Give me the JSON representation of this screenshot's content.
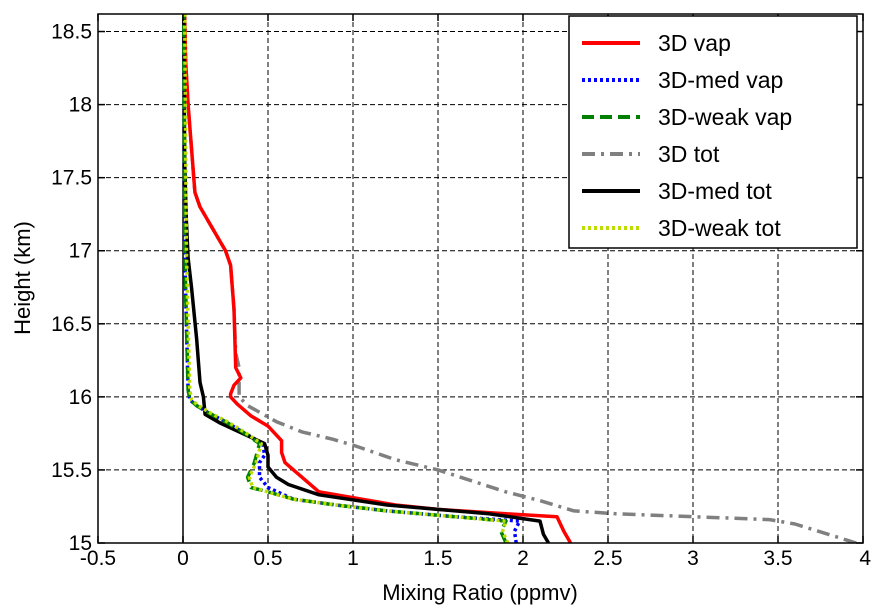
{
  "chart_data": {
    "type": "line",
    "title": "",
    "xlabel": "Mixing Ratio (ppmv)",
    "ylabel": "Height (km)",
    "xlim": [
      -0.5,
      4
    ],
    "ylim": [
      15,
      18.62
    ],
    "grid": true,
    "legend_position": "top-right",
    "x_ticks": [
      "-0.5",
      "0",
      "0.5",
      "1",
      "1.5",
      "2",
      "2.5",
      "3",
      "3.5",
      "4"
    ],
    "y_ticks": [
      "15",
      "15.5",
      "16",
      "16.5",
      "17",
      "17.5",
      "18",
      "18.5"
    ],
    "reference_line_x": 0,
    "series": [
      {
        "name": "3D tot",
        "color": "#808080",
        "dash": "dashdot",
        "points": [
          [
            3.96,
            15.0
          ],
          [
            3.85,
            15.04
          ],
          [
            3.6,
            15.13
          ],
          [
            3.45,
            15.16
          ],
          [
            3.0,
            15.18
          ],
          [
            2.55,
            15.2
          ],
          [
            2.3,
            15.22
          ],
          [
            2.1,
            15.29
          ],
          [
            1.9,
            15.35
          ],
          [
            1.5,
            15.5
          ],
          [
            1.25,
            15.57
          ],
          [
            1.0,
            15.67
          ],
          [
            0.88,
            15.71
          ],
          [
            0.7,
            15.76
          ],
          [
            0.55,
            15.83
          ],
          [
            0.38,
            15.94
          ],
          [
            0.33,
            16.0
          ],
          [
            0.33,
            16.2
          ],
          [
            0.31,
            16.3
          ],
          [
            0.3,
            16.6
          ],
          [
            0.28,
            16.9
          ],
          [
            0.25,
            17.0
          ],
          [
            0.2,
            17.1
          ],
          [
            0.15,
            17.2
          ],
          [
            0.1,
            17.3
          ],
          [
            0.07,
            17.4
          ],
          [
            0.05,
            17.7
          ],
          [
            0.03,
            18.0
          ],
          [
            0.015,
            18.3
          ],
          [
            0.01,
            18.62
          ]
        ]
      },
      {
        "name": "3D vap",
        "color": "#ff0000",
        "dash": "solid",
        "points": [
          [
            2.28,
            15.0
          ],
          [
            2.24,
            15.08
          ],
          [
            2.2,
            15.18
          ],
          [
            1.9,
            15.2
          ],
          [
            1.5,
            15.23
          ],
          [
            1.25,
            15.26
          ],
          [
            0.8,
            15.35
          ],
          [
            0.72,
            15.43
          ],
          [
            0.65,
            15.5
          ],
          [
            0.6,
            15.55
          ],
          [
            0.58,
            15.62
          ],
          [
            0.58,
            15.7
          ],
          [
            0.5,
            15.8
          ],
          [
            0.4,
            15.87
          ],
          [
            0.32,
            15.95
          ],
          [
            0.28,
            16.0
          ],
          [
            0.28,
            16.02
          ],
          [
            0.3,
            16.08
          ],
          [
            0.34,
            16.13
          ],
          [
            0.31,
            16.2
          ],
          [
            0.3,
            16.6
          ],
          [
            0.28,
            16.9
          ],
          [
            0.25,
            17.0
          ],
          [
            0.2,
            17.1
          ],
          [
            0.15,
            17.2
          ],
          [
            0.1,
            17.3
          ],
          [
            0.07,
            17.4
          ],
          [
            0.05,
            17.7
          ],
          [
            0.03,
            18.0
          ],
          [
            0.015,
            18.3
          ],
          [
            0.01,
            18.62
          ]
        ]
      },
      {
        "name": "3D-med vap",
        "color": "#0000ff",
        "dash": "dotted",
        "points": [
          [
            1.96,
            15.0
          ],
          [
            1.95,
            15.08
          ],
          [
            1.98,
            15.15
          ],
          [
            1.6,
            15.18
          ],
          [
            1.2,
            15.22
          ],
          [
            0.9,
            15.26
          ],
          [
            0.65,
            15.3
          ],
          [
            0.5,
            15.38
          ],
          [
            0.45,
            15.45
          ],
          [
            0.45,
            15.55
          ],
          [
            0.48,
            15.6
          ],
          [
            0.47,
            15.68
          ],
          [
            0.35,
            15.76
          ],
          [
            0.25,
            15.83
          ],
          [
            0.15,
            15.89
          ],
          [
            0.08,
            15.94
          ],
          [
            0.04,
            15.98
          ],
          [
            0.03,
            16.05
          ],
          [
            0.02,
            16.5
          ],
          [
            0.01,
            17.0
          ],
          [
            0.005,
            18.62
          ]
        ]
      },
      {
        "name": "3D-med tot",
        "color": "#000000",
        "dash": "solid",
        "points": [
          [
            2.15,
            15.0
          ],
          [
            2.12,
            15.06
          ],
          [
            2.1,
            15.15
          ],
          [
            1.8,
            15.2
          ],
          [
            1.5,
            15.23
          ],
          [
            1.2,
            15.26
          ],
          [
            0.8,
            15.33
          ],
          [
            0.62,
            15.4
          ],
          [
            0.55,
            15.45
          ],
          [
            0.5,
            15.52
          ],
          [
            0.5,
            15.6
          ],
          [
            0.48,
            15.68
          ],
          [
            0.35,
            15.75
          ],
          [
            0.22,
            15.82
          ],
          [
            0.13,
            15.88
          ],
          [
            0.12,
            16.0
          ],
          [
            0.1,
            16.1
          ],
          [
            0.08,
            16.4
          ],
          [
            0.05,
            16.75
          ],
          [
            0.03,
            16.95
          ],
          [
            0.02,
            17.2
          ],
          [
            0.01,
            17.6
          ],
          [
            0.005,
            18.62
          ]
        ]
      },
      {
        "name": "3D-weak vap",
        "color": "#008000",
        "dash": "dashed",
        "points": [
          [
            1.9,
            15.0
          ],
          [
            1.87,
            15.08
          ],
          [
            1.9,
            15.15
          ],
          [
            1.6,
            15.18
          ],
          [
            1.2,
            15.22
          ],
          [
            0.9,
            15.26
          ],
          [
            0.65,
            15.3
          ],
          [
            0.5,
            15.35
          ],
          [
            0.4,
            15.38
          ],
          [
            0.38,
            15.45
          ],
          [
            0.42,
            15.55
          ],
          [
            0.45,
            15.68
          ],
          [
            0.35,
            15.76
          ],
          [
            0.25,
            15.83
          ],
          [
            0.15,
            15.89
          ],
          [
            0.08,
            15.94
          ],
          [
            0.04,
            15.98
          ],
          [
            0.03,
            16.05
          ],
          [
            0.02,
            16.5
          ],
          [
            0.01,
            17.0
          ],
          [
            0.005,
            18.62
          ]
        ]
      },
      {
        "name": "3D-weak tot",
        "color": "#bbdd00",
        "dash": "dotted",
        "points": [
          [
            1.91,
            15.0
          ],
          [
            1.88,
            15.08
          ],
          [
            1.9,
            15.15
          ],
          [
            1.6,
            15.18
          ],
          [
            1.2,
            15.22
          ],
          [
            0.9,
            15.26
          ],
          [
            0.65,
            15.3
          ],
          [
            0.5,
            15.35
          ],
          [
            0.41,
            15.38
          ],
          [
            0.39,
            15.45
          ],
          [
            0.43,
            15.55
          ],
          [
            0.46,
            15.68
          ],
          [
            0.36,
            15.76
          ],
          [
            0.26,
            15.83
          ],
          [
            0.16,
            15.89
          ],
          [
            0.09,
            15.94
          ],
          [
            0.05,
            15.98
          ],
          [
            0.04,
            16.05
          ],
          [
            0.03,
            16.5
          ],
          [
            0.02,
            17.0
          ],
          [
            0.01,
            18.62
          ]
        ]
      }
    ],
    "legend_order": [
      "3D vap",
      "3D-med vap",
      "3D-weak vap",
      "3D tot",
      "3D-med tot",
      "3D-weak tot"
    ]
  }
}
